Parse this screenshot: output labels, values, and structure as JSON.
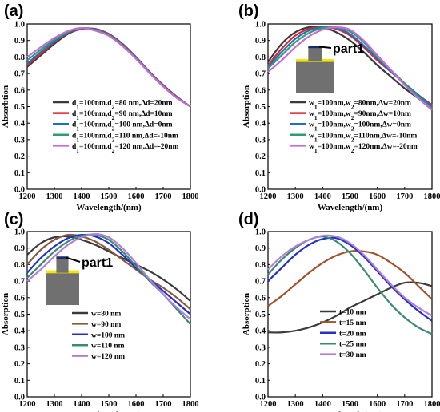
{
  "chart_data": [
    {
      "panel": "(a)",
      "type": "line",
      "xlabel": "Wavelength/(nm)",
      "ylabel": "Absorbtion",
      "xlim": [
        1200,
        1800
      ],
      "ylim": [
        0.0,
        1.0
      ],
      "xticks": [
        1200,
        1300,
        1400,
        1500,
        1600,
        1700,
        1800
      ],
      "yticks": [
        0.0,
        0.1,
        0.2,
        0.3,
        0.4,
        0.5,
        0.6,
        0.7,
        0.8,
        0.9,
        1.0
      ],
      "legend_position": "bottom-center",
      "x": [
        1200,
        1250,
        1300,
        1350,
        1400,
        1450,
        1500,
        1550,
        1600,
        1650,
        1700,
        1750,
        1800
      ],
      "series": [
        {
          "name": "d1=100nm,d2=80 nm,Δd=20nm",
          "color": "#3a3a3a",
          "values": [
            0.74,
            0.81,
            0.88,
            0.94,
            0.97,
            0.97,
            0.94,
            0.88,
            0.8,
            0.71,
            0.63,
            0.56,
            0.5
          ]
        },
        {
          "name": "d1=100nm,d2=90 nm,Δd=10nm",
          "color": "#e8222a",
          "values": [
            0.75,
            0.82,
            0.89,
            0.945,
            0.972,
            0.968,
            0.938,
            0.877,
            0.797,
            0.708,
            0.627,
            0.558,
            0.5
          ]
        },
        {
          "name": "d1=100nm,d2=100 nm,Δd=0nm",
          "color": "#1f6fc4",
          "values": [
            0.76,
            0.83,
            0.895,
            0.948,
            0.974,
            0.966,
            0.935,
            0.874,
            0.795,
            0.706,
            0.625,
            0.556,
            0.5
          ]
        },
        {
          "name": "d1=100nm,d2=110 nm,Δd=-10nm",
          "color": "#2e9e6e",
          "values": [
            0.78,
            0.845,
            0.905,
            0.952,
            0.975,
            0.963,
            0.932,
            0.871,
            0.792,
            0.704,
            0.623,
            0.554,
            0.5
          ]
        },
        {
          "name": "d1=100nm,d2=120 nm,Δd=-20nm",
          "color": "#c86ad8",
          "values": [
            0.8,
            0.86,
            0.915,
            0.957,
            0.976,
            0.96,
            0.928,
            0.867,
            0.789,
            0.702,
            0.621,
            0.552,
            0.5
          ]
        }
      ]
    },
    {
      "panel": "(b)",
      "type": "line",
      "xlabel": "Wavelength/(nm)",
      "ylabel": "Absorption",
      "xlim": [
        1200,
        1800
      ],
      "ylim": [
        0.0,
        1.0
      ],
      "xticks": [
        1200,
        1300,
        1400,
        1500,
        1600,
        1700,
        1800
      ],
      "yticks": [
        0.0,
        0.1,
        0.2,
        0.3,
        0.4,
        0.5,
        0.6,
        0.7,
        0.8,
        0.9,
        1.0
      ],
      "legend_position": "bottom-center",
      "annotation": "part1",
      "x": [
        1200,
        1250,
        1300,
        1350,
        1400,
        1450,
        1500,
        1550,
        1600,
        1650,
        1700,
        1750,
        1800
      ],
      "series": [
        {
          "name": "w1=100nm,w2=80nm,Δw=20nm",
          "color": "#3a3a3a",
          "values": [
            0.77,
            0.88,
            0.95,
            0.98,
            0.98,
            0.95,
            0.9,
            0.83,
            0.75,
            0.68,
            0.61,
            0.55,
            0.49
          ]
        },
        {
          "name": "w1=100nm,w2=90nm,Δw=10nm",
          "color": "#e8222a",
          "values": [
            0.75,
            0.85,
            0.93,
            0.97,
            0.98,
            0.97,
            0.93,
            0.86,
            0.78,
            0.71,
            0.64,
            0.57,
            0.51
          ]
        },
        {
          "name": "w1=100nm,w2=100nm,Δw=0nm",
          "color": "#1f6fc4",
          "values": [
            0.74,
            0.83,
            0.91,
            0.96,
            0.98,
            0.975,
            0.94,
            0.87,
            0.79,
            0.71,
            0.64,
            0.57,
            0.5
          ]
        },
        {
          "name": "w1=100nm,w2=110nm,Δw=-10nm",
          "color": "#2e9e6e",
          "values": [
            0.73,
            0.81,
            0.89,
            0.945,
            0.975,
            0.98,
            0.955,
            0.89,
            0.8,
            0.72,
            0.64,
            0.56,
            0.49
          ]
        },
        {
          "name": "w1=100nm,w2=120nm,Δw=-20nm",
          "color": "#c86ad8",
          "values": [
            0.71,
            0.78,
            0.86,
            0.925,
            0.965,
            0.98,
            0.965,
            0.9,
            0.81,
            0.72,
            0.63,
            0.55,
            0.48
          ]
        }
      ]
    },
    {
      "panel": "(c)",
      "type": "line",
      "xlabel": "Wavelength/(nm)",
      "ylabel": "Absorption",
      "xlim": [
        1200,
        1800
      ],
      "ylim": [
        0.0,
        1.0
      ],
      "xticks": [
        1200,
        1300,
        1400,
        1500,
        1600,
        1700,
        1800
      ],
      "yticks": [
        0.0,
        0.1,
        0.2,
        0.3,
        0.4,
        0.5,
        0.6,
        0.7,
        0.8,
        0.9,
        1.0
      ],
      "legend_position": "bottom-center",
      "annotation": "part1",
      "x": [
        1200,
        1250,
        1300,
        1350,
        1400,
        1450,
        1500,
        1550,
        1600,
        1650,
        1700,
        1750,
        1800
      ],
      "series": [
        {
          "name": "w=80 nm",
          "color": "#3a3a3a",
          "values": [
            0.86,
            0.93,
            0.965,
            0.97,
            0.95,
            0.92,
            0.88,
            0.84,
            0.8,
            0.76,
            0.71,
            0.65,
            0.58
          ]
        },
        {
          "name": "w=90 nm",
          "color": "#8b5a3c",
          "values": [
            0.8,
            0.89,
            0.95,
            0.98,
            0.97,
            0.94,
            0.89,
            0.83,
            0.77,
            0.71,
            0.66,
            0.6,
            0.53
          ]
        },
        {
          "name": "w=100 nm",
          "color": "#2330c8",
          "values": [
            0.75,
            0.84,
            0.91,
            0.96,
            0.98,
            0.97,
            0.93,
            0.86,
            0.78,
            0.71,
            0.64,
            0.57,
            0.5
          ]
        },
        {
          "name": "w=110 nm",
          "color": "#3a8a70",
          "values": [
            0.72,
            0.8,
            0.88,
            0.94,
            0.975,
            0.98,
            0.95,
            0.88,
            0.79,
            0.7,
            0.62,
            0.53,
            0.44
          ]
        },
        {
          "name": "w=120 nm",
          "color": "#b07fd8",
          "values": [
            0.7,
            0.77,
            0.85,
            0.92,
            0.965,
            0.985,
            0.965,
            0.9,
            0.81,
            0.71,
            0.62,
            0.54,
            0.47
          ]
        }
      ]
    },
    {
      "panel": "(d)",
      "type": "line",
      "xlabel": "Wavelength/(nm)",
      "ylabel": "Absorption",
      "xlim": [
        1200,
        1800
      ],
      "ylim": [
        0.0,
        1.0
      ],
      "xticks": [
        1200,
        1300,
        1400,
        1500,
        1600,
        1700,
        1800
      ],
      "yticks": [
        0.0,
        0.1,
        0.2,
        0.3,
        0.4,
        0.5,
        0.6,
        0.7,
        0.8,
        0.9,
        1.0
      ],
      "legend_position": "bottom-center",
      "x": [
        1200,
        1250,
        1300,
        1350,
        1400,
        1450,
        1500,
        1550,
        1600,
        1650,
        1700,
        1750,
        1800
      ],
      "series": [
        {
          "name": "t=10 nm",
          "color": "#3a3a3a",
          "values": [
            0.39,
            0.39,
            0.4,
            0.42,
            0.45,
            0.49,
            0.54,
            0.58,
            0.62,
            0.66,
            0.69,
            0.69,
            0.67
          ]
        },
        {
          "name": "t=15 nm",
          "color": "#a0522d",
          "values": [
            0.55,
            0.61,
            0.68,
            0.75,
            0.81,
            0.855,
            0.88,
            0.88,
            0.86,
            0.81,
            0.75,
            0.67,
            0.59
          ]
        },
        {
          "name": "t=20 nm",
          "color": "#2330c8",
          "values": [
            0.7,
            0.78,
            0.86,
            0.92,
            0.955,
            0.96,
            0.92,
            0.85,
            0.76,
            0.67,
            0.59,
            0.52,
            0.46
          ]
        },
        {
          "name": "t=25 nm",
          "color": "#3a8a70",
          "values": [
            0.74,
            0.83,
            0.9,
            0.95,
            0.97,
            0.94,
            0.87,
            0.77,
            0.66,
            0.56,
            0.48,
            0.42,
            0.38
          ]
        },
        {
          "name": "t=30 nm",
          "color": "#b07fd8",
          "values": [
            0.77,
            0.85,
            0.91,
            0.95,
            0.975,
            0.97,
            0.93,
            0.86,
            0.77,
            0.68,
            0.6,
            0.54,
            0.49
          ]
        }
      ]
    }
  ]
}
